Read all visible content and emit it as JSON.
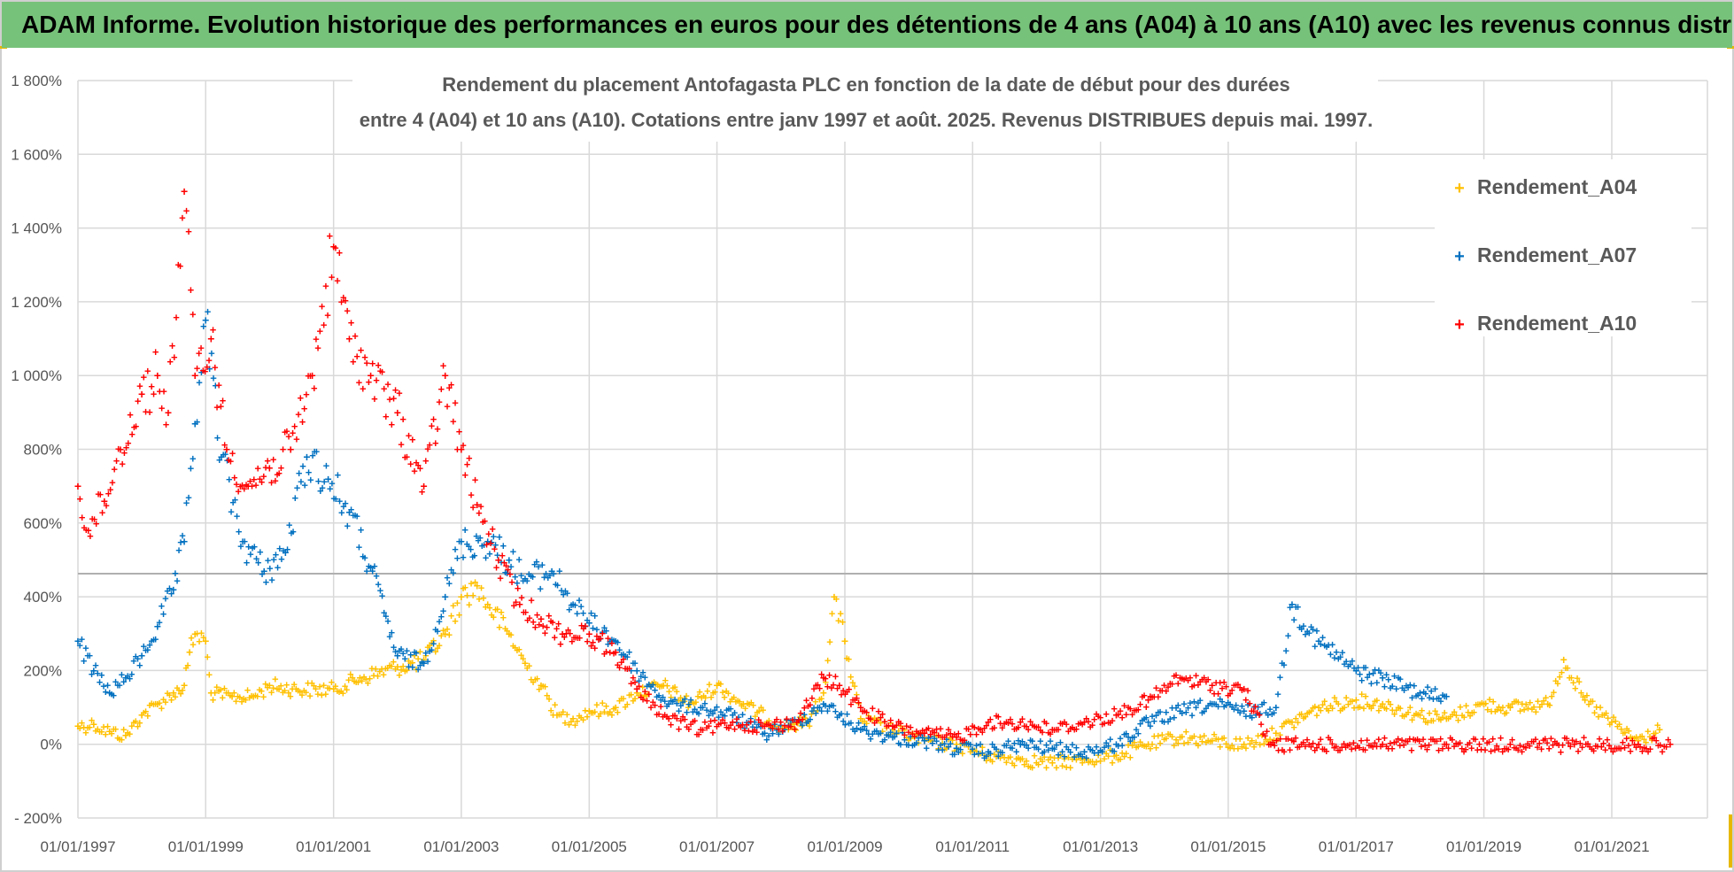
{
  "banner": {
    "title": "ADAM Informe. Evolution historique des performances en euros pour des détentions de 4 ans (A04) à 10 ans (A10) avec les revenus connus distribués"
  },
  "colors": {
    "banner_bg": "#77c27a",
    "grid": "#d9d9d9",
    "A04": "#ffc000",
    "A07": "#0070c0",
    "A10": "#ff0000"
  },
  "chart_data": {
    "type": "scatter",
    "title_lines": [
      "Rendement du placement Antofagasta PLC en fonction de la date de début pour des durées",
      "entre 4 (A04) et 10 ans (A10).  Cotations entre janv 1997 et août. 2025. Revenus DISTRIBUES depuis mai. 1997."
    ],
    "x_tick_labels": [
      "01/01/1997",
      "01/01/1999",
      "01/01/2001",
      "01/01/2003",
      "01/01/2005",
      "01/01/2007",
      "01/01/2009",
      "01/01/2011",
      "01/01/2013",
      "01/01/2015",
      "01/01/2017",
      "01/01/2019",
      "01/01/2021"
    ],
    "y_tick_labels": [
      "1 800%",
      "1 600%",
      "1 400%",
      "1 200%",
      "1 000%",
      "800%",
      "600%",
      "400%",
      "200%",
      "0%",
      "- 200%"
    ],
    "xlim": [
      "1997-01-01",
      "2022-01-01"
    ],
    "ylim": [
      -200,
      1800
    ],
    "grid": true,
    "legend_position": "top-right",
    "series": [
      {
        "name": "Rendement_A04",
        "color": "#ffc000",
        "points": [
          [
            "1997-01-01",
            50
          ],
          [
            "1997-04-01",
            55
          ],
          [
            "1997-07-01",
            35
          ],
          [
            "1997-10-01",
            25
          ],
          [
            "1998-01-01",
            80
          ],
          [
            "1998-04-01",
            110
          ],
          [
            "1998-07-01",
            140
          ],
          [
            "1998-09-01",
            160
          ],
          [
            "1998-10-01",
            250
          ],
          [
            "1998-11-01",
            300
          ],
          [
            "1999-01-01",
            280
          ],
          [
            "1999-02-01",
            140
          ],
          [
            "1999-06-01",
            130
          ],
          [
            "1999-10-01",
            130
          ],
          [
            "2000-01-01",
            160
          ],
          [
            "2000-06-01",
            150
          ],
          [
            "2001-01-01",
            150
          ],
          [
            "2001-06-01",
            180
          ],
          [
            "2002-01-01",
            210
          ],
          [
            "2002-06-01",
            230
          ],
          [
            "2002-10-01",
            300
          ],
          [
            "2003-01-01",
            400
          ],
          [
            "2003-04-01",
            430
          ],
          [
            "2003-06-01",
            380
          ],
          [
            "2003-10-01",
            300
          ],
          [
            "2004-01-01",
            220
          ],
          [
            "2004-04-01",
            160
          ],
          [
            "2004-07-01",
            80
          ],
          [
            "2004-10-01",
            70
          ],
          [
            "2005-01-01",
            90
          ],
          [
            "2005-06-01",
            100
          ],
          [
            "2005-10-01",
            140
          ],
          [
            "2006-03-01",
            160
          ],
          [
            "2006-08-01",
            110
          ],
          [
            "2007-01-01",
            160
          ],
          [
            "2007-06-01",
            110
          ],
          [
            "2008-01-01",
            50
          ],
          [
            "2008-06-01",
            60
          ],
          [
            "2008-09-01",
            140
          ],
          [
            "2008-11-01",
            400
          ],
          [
            "2009-01-01",
            280
          ],
          [
            "2009-04-01",
            70
          ],
          [
            "2009-10-01",
            40
          ],
          [
            "2010-04-01",
            10
          ],
          [
            "2010-10-01",
            0
          ],
          [
            "2011-04-01",
            -30
          ],
          [
            "2011-10-01",
            -40
          ],
          [
            "2012-04-01",
            -50
          ],
          [
            "2012-10-01",
            -40
          ],
          [
            "2013-04-01",
            -30
          ],
          [
            "2013-10-01",
            0
          ],
          [
            "2014-04-01",
            20
          ],
          [
            "2014-10-01",
            10
          ],
          [
            "2015-04-01",
            0
          ],
          [
            "2015-10-01",
            30
          ],
          [
            "2016-01-01",
            60
          ],
          [
            "2016-06-01",
            100
          ],
          [
            "2017-01-01",
            120
          ],
          [
            "2017-06-01",
            110
          ],
          [
            "2018-01-01",
            80
          ],
          [
            "2018-06-01",
            70
          ],
          [
            "2019-01-01",
            110
          ],
          [
            "2019-06-01",
            100
          ],
          [
            "2020-01-01",
            110
          ],
          [
            "2020-04-01",
            230
          ],
          [
            "2020-08-01",
            120
          ],
          [
            "2021-01-01",
            60
          ],
          [
            "2021-06-01",
            10
          ],
          [
            "2021-10-01",
            40
          ]
        ]
      },
      {
        "name": "Rendement_A07",
        "color": "#0070c0",
        "points": [
          [
            "1997-01-01",
            280
          ],
          [
            "1997-04-01",
            200
          ],
          [
            "1997-07-01",
            140
          ],
          [
            "1997-10-01",
            180
          ],
          [
            "1998-01-01",
            240
          ],
          [
            "1998-04-01",
            320
          ],
          [
            "1998-07-01",
            420
          ],
          [
            "1998-09-01",
            550
          ],
          [
            "1998-11-01",
            870
          ],
          [
            "1999-01-01",
            1150
          ],
          [
            "1999-04-01",
            780
          ],
          [
            "1999-08-01",
            550
          ],
          [
            "1999-12-01",
            470
          ],
          [
            "2000-04-01",
            520
          ],
          [
            "2000-08-01",
            780
          ],
          [
            "2000-12-01",
            720
          ],
          [
            "2001-04-01",
            630
          ],
          [
            "2001-08-01",
            480
          ],
          [
            "2002-01-01",
            240
          ],
          [
            "2002-06-01",
            220
          ],
          [
            "2002-10-01",
            400
          ],
          [
            "2003-01-01",
            550
          ],
          [
            "2003-06-01",
            550
          ],
          [
            "2003-10-01",
            500
          ],
          [
            "2004-01-01",
            450
          ],
          [
            "2004-06-01",
            470
          ],
          [
            "2004-10-01",
            380
          ],
          [
            "2005-01-01",
            330
          ],
          [
            "2005-06-01",
            280
          ],
          [
            "2005-10-01",
            200
          ],
          [
            "2006-04-01",
            110
          ],
          [
            "2006-10-01",
            100
          ],
          [
            "2007-04-01",
            80
          ],
          [
            "2007-10-01",
            30
          ],
          [
            "2008-04-01",
            60
          ],
          [
            "2008-09-01",
            110
          ],
          [
            "2008-12-01",
            80
          ],
          [
            "2009-04-01",
            40
          ],
          [
            "2009-10-01",
            20
          ],
          [
            "2010-04-01",
            10
          ],
          [
            "2010-10-01",
            -10
          ],
          [
            "2011-04-01",
            -20
          ],
          [
            "2011-10-01",
            0
          ],
          [
            "2012-04-01",
            -10
          ],
          [
            "2012-10-01",
            -20
          ],
          [
            "2013-04-01",
            0
          ],
          [
            "2013-10-01",
            60
          ],
          [
            "2014-04-01",
            90
          ],
          [
            "2014-10-01",
            110
          ],
          [
            "2015-04-01",
            90
          ],
          [
            "2015-10-01",
            100
          ],
          [
            "2016-01-01",
            380
          ],
          [
            "2016-06-01",
            280
          ],
          [
            "2017-01-01",
            200
          ],
          [
            "2017-06-01",
            180
          ],
          [
            "2018-01-01",
            140
          ],
          [
            "2018-06-01",
            130
          ]
        ]
      },
      {
        "name": "Rendement_A10",
        "color": "#ff0000",
        "points": [
          [
            "1997-01-01",
            700
          ],
          [
            "1997-03-01",
            580
          ],
          [
            "1997-06-01",
            660
          ],
          [
            "1997-09-01",
            800
          ],
          [
            "1998-01-01",
            950
          ],
          [
            "1998-04-01",
            1000
          ],
          [
            "1998-06-01",
            900
          ],
          [
            "1998-09-01",
            1500
          ],
          [
            "1998-11-01",
            1000
          ],
          [
            "1999-02-01",
            1100
          ],
          [
            "1999-05-01",
            800
          ],
          [
            "1999-09-01",
            700
          ],
          [
            "2000-01-01",
            750
          ],
          [
            "2000-05-01",
            800
          ],
          [
            "2000-09-01",
            1000
          ],
          [
            "2001-01-01",
            1350
          ],
          [
            "2001-04-01",
            1100
          ],
          [
            "2001-08-01",
            1000
          ],
          [
            "2002-01-01",
            900
          ],
          [
            "2002-06-01",
            700
          ],
          [
            "2002-10-01",
            1000
          ],
          [
            "2003-01-01",
            800
          ],
          [
            "2003-04-01",
            650
          ],
          [
            "2003-08-01",
            500
          ],
          [
            "2003-12-01",
            380
          ],
          [
            "2004-04-01",
            340
          ],
          [
            "2004-08-01",
            300
          ],
          [
            "2005-01-01",
            300
          ],
          [
            "2005-06-01",
            250
          ],
          [
            "2005-10-01",
            150
          ],
          [
            "2006-04-01",
            70
          ],
          [
            "2006-10-01",
            40
          ],
          [
            "2007-04-01",
            60
          ],
          [
            "2007-10-01",
            50
          ],
          [
            "2008-04-01",
            60
          ],
          [
            "2008-09-01",
            180
          ],
          [
            "2008-12-01",
            160
          ],
          [
            "2009-04-01",
            100
          ],
          [
            "2009-10-01",
            50
          ],
          [
            "2010-04-01",
            30
          ],
          [
            "2010-10-01",
            20
          ],
          [
            "2011-04-01",
            60
          ],
          [
            "2011-10-01",
            60
          ],
          [
            "2012-04-01",
            40
          ],
          [
            "2012-10-01",
            60
          ],
          [
            "2013-04-01",
            80
          ],
          [
            "2013-10-01",
            120
          ],
          [
            "2014-04-01",
            180
          ],
          [
            "2014-10-01",
            160
          ],
          [
            "2015-04-01",
            150
          ],
          [
            "2015-09-01",
            0
          ],
          [
            "2016-06-01",
            0
          ],
          [
            "2017-06-01",
            0
          ],
          [
            "2018-06-01",
            0
          ],
          [
            "2019-06-01",
            0
          ],
          [
            "2020-06-01",
            0
          ],
          [
            "2021-06-01",
            0
          ],
          [
            "2021-12-01",
            0
          ]
        ]
      }
    ]
  }
}
